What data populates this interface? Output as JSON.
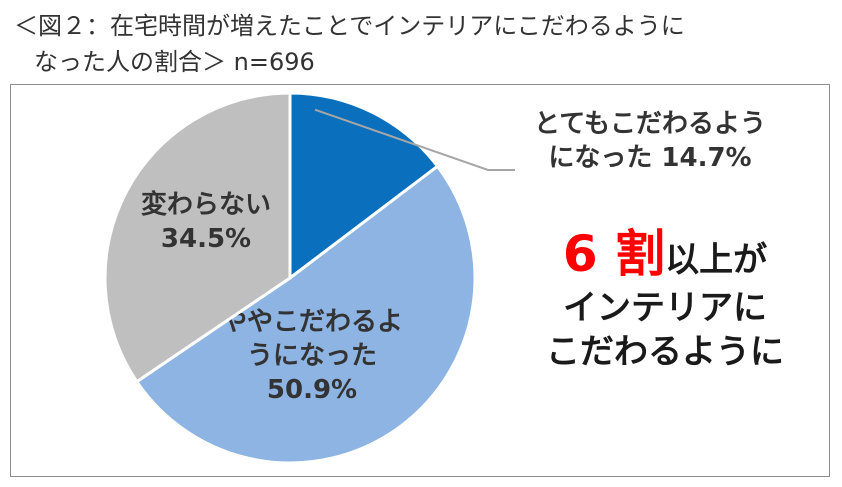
{
  "title": {
    "line1": "＜図２：在宅時間が増えたことでインテリアにこだわるように",
    "line2": "なった人の割合＞ n=696"
  },
  "colors": {
    "slice1": "#0a6fbd",
    "slice2": "#8db4e2",
    "slice3": "#bfbfbf",
    "frame": "#8c8c8c",
    "leader": "#a6a6a6",
    "highlight": "#ff0000"
  },
  "chart_data": {
    "type": "pie",
    "start_angle_deg": 0,
    "direction": "clockwise",
    "slices": [
      {
        "label_lines": [
          "とてもこだわるよう",
          "になった 14.7%"
        ],
        "value": 14.7,
        "color": "#0a6fbd",
        "label_placement": "outside-leader"
      },
      {
        "label_lines": [
          "ややこだわるよ",
          "うになった",
          "50.9%"
        ],
        "value": 50.9,
        "color": "#8db4e2",
        "label_placement": "inside"
      },
      {
        "label_lines": [
          "変わらない",
          "34.5%"
        ],
        "value": 34.5,
        "color": "#bfbfbf",
        "label_placement": "inside"
      }
    ]
  },
  "callout": {
    "big": "6 割",
    "line1_rest": "以上が",
    "line2": "インテリアに",
    "line3": "こだわるように"
  }
}
